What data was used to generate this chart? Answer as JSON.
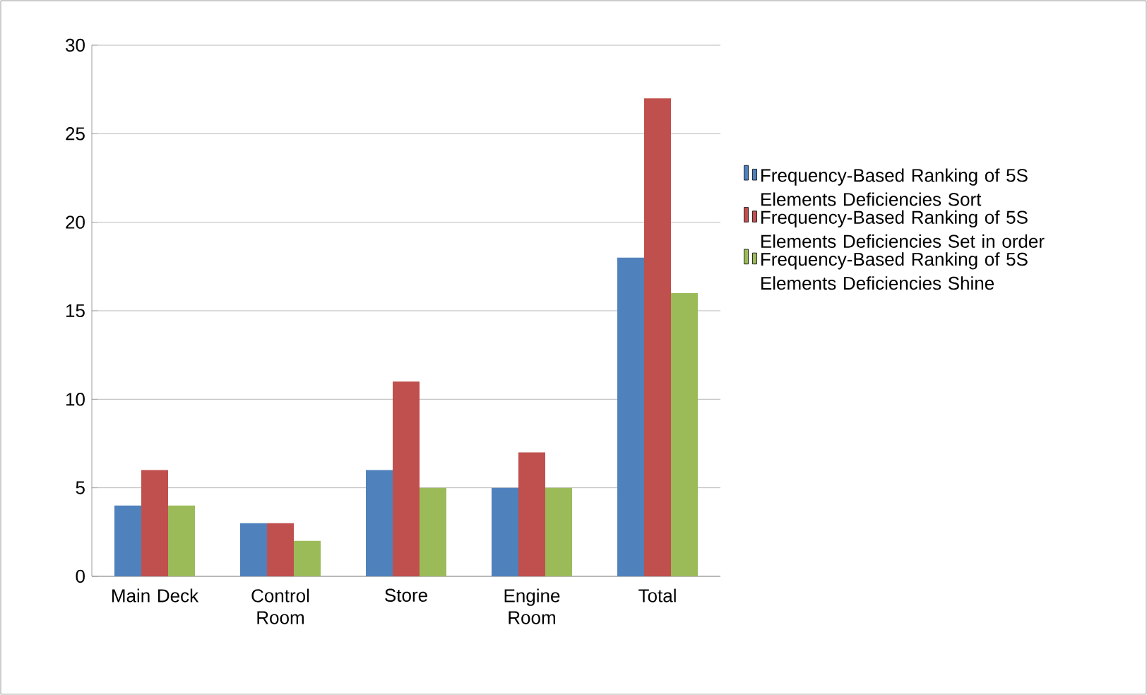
{
  "chart_data": {
    "type": "bar",
    "categories": [
      "Main Deck",
      "Control Room",
      "Store",
      "Engine Room",
      "Total"
    ],
    "series": [
      {
        "name": "Frequency-Based Ranking of 5S Elements Deficiencies Sort",
        "color": "#4f81bd",
        "values": [
          4,
          3,
          6,
          5,
          18
        ]
      },
      {
        "name": "Frequency-Based Ranking of 5S Elements Deficiencies Set in order",
        "color": "#c0504d",
        "values": [
          6,
          3,
          11,
          7,
          27
        ]
      },
      {
        "name": "Frequency-Based Ranking of 5S Elements Deficiencies Shine",
        "color": "#9bbb59",
        "values": [
          4,
          2,
          5,
          5,
          16
        ]
      }
    ],
    "ylim": [
      0,
      30
    ],
    "yticks": [
      0,
      5,
      10,
      15,
      20,
      25,
      30
    ],
    "grid": "y",
    "legend": "right"
  }
}
